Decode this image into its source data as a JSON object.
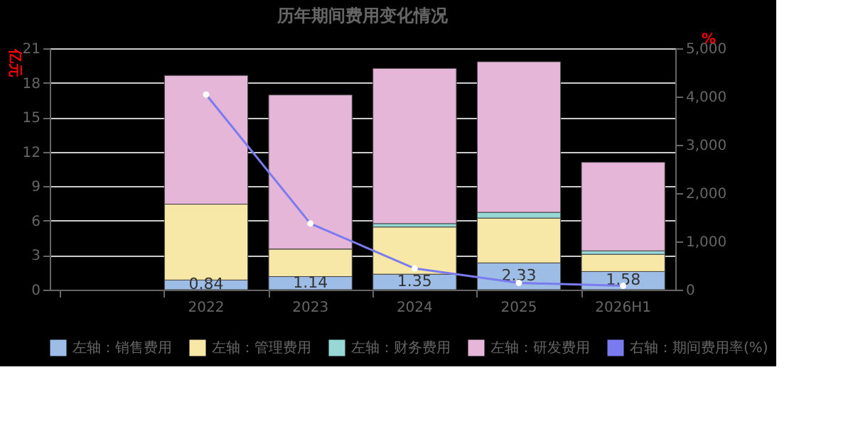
{
  "chart_data": {
    "type": "bar",
    "title": "历年期间费用变化情况",
    "ylabel": "亿元",
    "y2label": "%",
    "stacked": true,
    "categories": [
      null,
      "2022",
      "2023",
      "2024",
      "2025",
      "2026H1"
    ],
    "series": [
      {
        "name": "左轴：销售费用",
        "color": "#9dbde6",
        "values": [
          null,
          0.84,
          1.14,
          1.35,
          2.33,
          1.58
        ],
        "value_labels": [
          null,
          "0.84",
          "1.14",
          "1.35",
          "2.33",
          "1.58"
        ]
      },
      {
        "name": "左轴：管理费用",
        "color": "#f8e8a8",
        "values": [
          null,
          6.6,
          2.4,
          4.1,
          3.9,
          1.5
        ]
      },
      {
        "name": "左轴：财务费用",
        "color": "#98d8d4",
        "values": [
          null,
          0,
          0,
          0.3,
          0.5,
          0.3
        ]
      },
      {
        "name": "左轴：研发费用",
        "color": "#e6b6d8",
        "values": [
          null,
          11.2,
          13.4,
          13.5,
          13.1,
          7.7
        ]
      },
      {
        "name": "右轴：期间费用率(%)",
        "color": "#7b7bf0",
        "type": "line",
        "axis": "y2",
        "marker": "circle",
        "values": [
          null,
          4040,
          1370,
          440,
          140,
          80
        ]
      }
    ],
    "ylim": [
      0,
      21
    ],
    "yticks": [
      0,
      3,
      6,
      9,
      12,
      15,
      18,
      21
    ],
    "y2lim": [
      0,
      5000
    ],
    "y2ticks": [
      {
        "value": 0,
        "label": "0"
      },
      {
        "value": 1000,
        "label": "1,000"
      },
      {
        "value": 2000,
        "label": "2,000"
      },
      {
        "value": 3000,
        "label": "3,000"
      },
      {
        "value": 4000,
        "label": "4,000"
      },
      {
        "value": 5000,
        "label": "5,000"
      }
    ],
    "grid": "y",
    "legend": "bottom"
  }
}
